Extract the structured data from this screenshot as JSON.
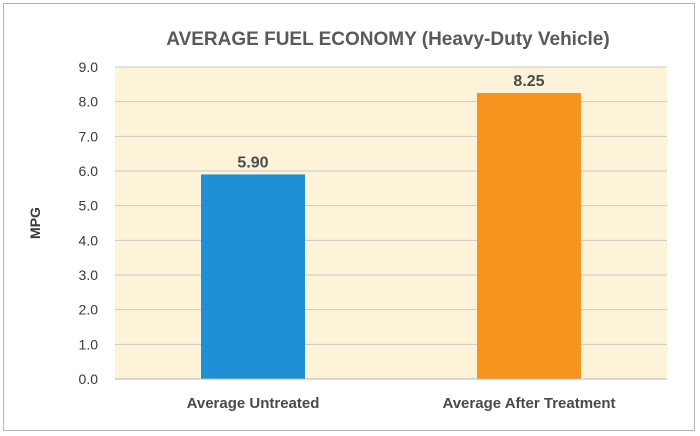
{
  "chart_data": {
    "type": "bar",
    "title": "AVERAGE FUEL ECONOMY (Heavy-Duty Vehicle)",
    "xlabel": "",
    "ylabel": "MPG",
    "ylim": [
      0,
      9
    ],
    "yticks": [
      "0.0",
      "1.0",
      "2.0",
      "3.0",
      "4.0",
      "5.0",
      "6.0",
      "7.0",
      "8.0",
      "9.0"
    ],
    "categories": [
      "Average Untreated",
      "Average After Treatment"
    ],
    "values": [
      5.9,
      8.25
    ],
    "data_labels": [
      "5.90",
      "8.25"
    ],
    "bar_colors": [
      "#1f8fd6",
      "#f7941d"
    ],
    "plot_background": "#fcf3d9",
    "grid": true
  }
}
